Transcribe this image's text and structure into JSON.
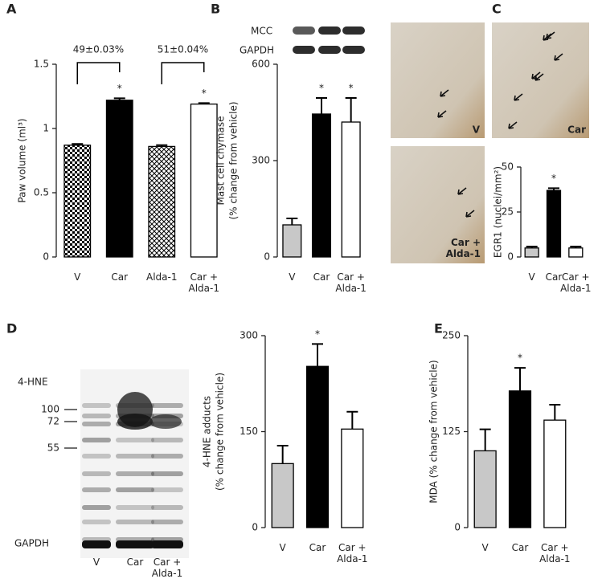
{
  "chart_data": [
    {
      "type": "bar",
      "panel": "A",
      "y_label": [
        "Paw volume (ml³)"
      ],
      "categories": [
        "V",
        "Car",
        "Alda-1",
        "Car + Alda-1"
      ],
      "values": [
        0.87,
        1.22,
        0.86,
        1.19
      ],
      "errors": [
        0.01,
        0.015,
        0.01,
        0.008
      ],
      "colors": [
        "url(#checker)",
        "#000000",
        "url(#cross)",
        "#ffffff"
      ],
      "stars": [
        null,
        "*",
        null,
        "*"
      ],
      "comparisons": [
        "49±0.03%",
        "51±0.04%"
      ],
      "ylim": [
        0,
        1.5
      ],
      "yticks": [
        0,
        0.5,
        1,
        1.5
      ]
    },
    {
      "type": "bar",
      "panel": "B",
      "y_label": [
        "Mast cell chymase",
        "(% change from vehicle)"
      ],
      "categories": [
        "V",
        "Car",
        "Car + Alda-1"
      ],
      "values": [
        100,
        445,
        420
      ],
      "errors": [
        20,
        50,
        75
      ],
      "colors": [
        "#c8c8c8",
        "#000000",
        "#ffffff"
      ],
      "stars": [
        null,
        "*",
        "*"
      ],
      "blot_labels": [
        "MCC",
        "GAPDH"
      ],
      "ylim": [
        0,
        600
      ],
      "yticks": [
        0,
        300,
        600
      ]
    },
    {
      "type": "bar",
      "panel": "C",
      "y_label": [
        "EGR1 (nuclei/mm²)"
      ],
      "categories": [
        "V",
        "Car",
        "Car + Alda-1"
      ],
      "values": [
        5,
        37,
        5
      ],
      "errors": [
        0.8,
        1.2,
        0.8
      ],
      "colors": [
        "#c8c8c8",
        "#000000",
        "#ffffff"
      ],
      "stars": [
        null,
        "*",
        null
      ],
      "image_labels": [
        "V",
        "Car",
        "Car + Alda-1"
      ],
      "ylim": [
        0,
        50
      ],
      "yticks": [
        0,
        25,
        50
      ]
    },
    {
      "type": "bar",
      "panel": "D",
      "y_label": [
        "4-HNE adducts",
        "(% change from vehicle)"
      ],
      "categories": [
        "V",
        "Car",
        "Car + Alda-1"
      ],
      "values": [
        100,
        252,
        154
      ],
      "errors": [
        28,
        35,
        27
      ],
      "colors": [
        "#c8c8c8",
        "#000000",
        "#ffffff"
      ],
      "stars": [
        null,
        "*",
        null
      ],
      "blot_labels": [
        "4-HNE",
        "GAPDH"
      ],
      "markers": [
        100,
        72,
        55
      ],
      "ylim": [
        0,
        300
      ],
      "yticks": [
        0,
        150,
        300
      ]
    },
    {
      "type": "bar",
      "panel": "E",
      "y_label": [
        "MDA (% change from vehicle)"
      ],
      "categories": [
        "V",
        "Car",
        "Car + Alda-1"
      ],
      "values": [
        100,
        178,
        140
      ],
      "errors": [
        28,
        30,
        20
      ],
      "colors": [
        "#c8c8c8",
        "#000000",
        "#ffffff"
      ],
      "stars": [
        null,
        "*",
        null
      ],
      "ylim": [
        0,
        250
      ],
      "yticks": [
        0,
        125,
        250
      ]
    }
  ]
}
